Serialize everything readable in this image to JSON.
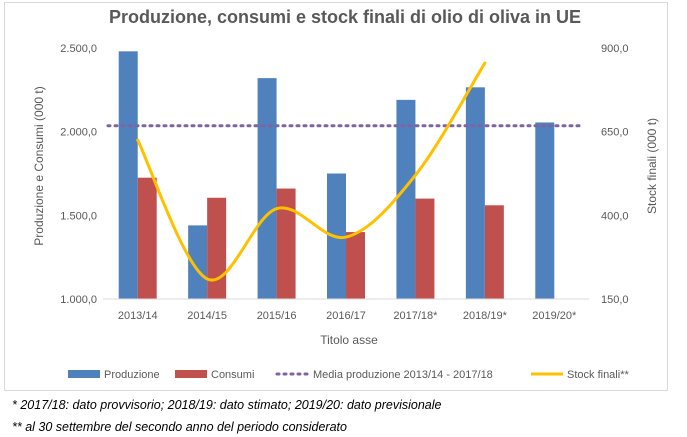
{
  "chart_data": {
    "type": "bar",
    "title": "Produzione, consumi e stock finali di olio di oliva in UE",
    "xlabel": "Titolo asse",
    "ylabel": "Produzione e Consumi (000 t)",
    "y2label": "Stock finali (000 t)",
    "categories": [
      "2013/14",
      "2014/15",
      "2015/16",
      "2016/17",
      "2017/18*",
      "2018/19*",
      "2019/20*"
    ],
    "ylim": [
      1000,
      2500
    ],
    "yticks": [
      "1.000,0",
      "1.500,0",
      "2.000,0",
      "2.500,0"
    ],
    "y2lim": [
      150,
      900
    ],
    "y2ticks": [
      "150,0",
      "400,0",
      "650,0",
      "900,0"
    ],
    "series": [
      {
        "name": "Produzione",
        "type": "bar",
        "color": "#4f81bd",
        "values": [
          2480,
          1440,
          2320,
          1750,
          2190,
          2265,
          2055
        ]
      },
      {
        "name": "Consumi",
        "type": "bar",
        "color": "#c0504d",
        "values": [
          1725,
          1605,
          1660,
          1400,
          1600,
          1560,
          null
        ]
      },
      {
        "name": "Media produzione 2013/14 - 2017/18",
        "type": "line",
        "style": "dotted",
        "color": "#8064a2",
        "values": [
          2035,
          2035,
          2035,
          2035,
          2035,
          2035,
          2035
        ]
      },
      {
        "name": "Stock finali**",
        "type": "line",
        "axis": "secondary",
        "color": "#ffc000",
        "values": [
          625,
          210,
          420,
          335,
          520,
          855,
          null
        ]
      }
    ],
    "legend_position": "bottom",
    "grid": false
  },
  "notes": [
    "* 2017/18: dato provvisorio; 2018/19: dato stimato; 2019/20: dato previsionale",
    "** al 30 settembre del secondo anno del periodo considerato"
  ]
}
